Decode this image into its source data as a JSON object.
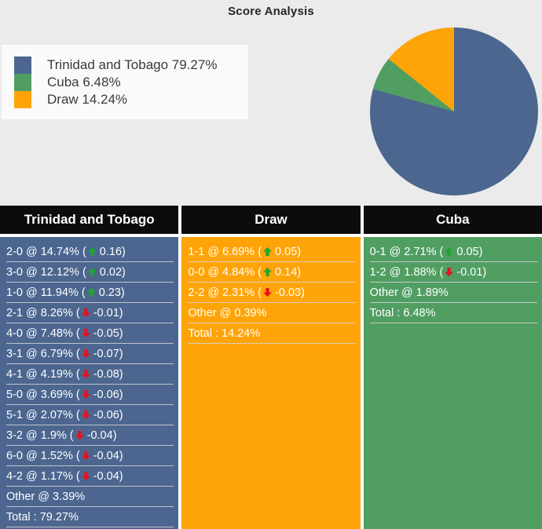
{
  "title": "Score Analysis",
  "colors": {
    "home": "#4c668f",
    "away": "#519e63",
    "draw": "#ffa408",
    "up_arrow": "#1ea62e",
    "down_arrow": "#e8101f",
    "background": "#ebebeb",
    "legend_background": "#fafafa",
    "header_background": "#0c0c0c",
    "row_text": "#ffffff"
  },
  "legend": {
    "items": [
      {
        "label": "Trinidad and Tobago 79.27%",
        "color": "#4c668f"
      },
      {
        "label": "Cuba 6.48%",
        "color": "#519e63"
      },
      {
        "label": "Draw 14.24%",
        "color": "#ffa408"
      }
    ]
  },
  "chart_data": {
    "type": "pie",
    "title": "Score Analysis",
    "labels": [
      "Trinidad and Tobago",
      "Cuba",
      "Draw"
    ],
    "values": [
      79.27,
      6.48,
      14.24
    ],
    "colors": [
      "#4c668f",
      "#519e63",
      "#ffa408"
    ],
    "start_angle": "12 o'clock",
    "direction": "clockwise",
    "legend_position": "upper left"
  },
  "columns": [
    {
      "header": "Trinidad and Tobago",
      "bg": "#4c668f",
      "rows": [
        {
          "score": "2-0",
          "pct": "14.74%",
          "trend": "up",
          "delta": "0.16"
        },
        {
          "score": "3-0",
          "pct": "12.12%",
          "trend": "up",
          "delta": "0.02"
        },
        {
          "score": "1-0",
          "pct": "11.94%",
          "trend": "up",
          "delta": "0.23"
        },
        {
          "score": "2-1",
          "pct": "8.26%",
          "trend": "down",
          "delta": "-0.01"
        },
        {
          "score": "4-0",
          "pct": "7.48%",
          "trend": "down",
          "delta": "-0.05"
        },
        {
          "score": "3-1",
          "pct": "6.79%",
          "trend": "down",
          "delta": "-0.07"
        },
        {
          "score": "4-1",
          "pct": "4.19%",
          "trend": "down",
          "delta": "-0.08"
        },
        {
          "score": "5-0",
          "pct": "3.69%",
          "trend": "down",
          "delta": "-0.06"
        },
        {
          "score": "5-1",
          "pct": "2.07%",
          "trend": "down",
          "delta": "-0.06"
        },
        {
          "score": "3-2",
          "pct": "1.9%",
          "trend": "down",
          "delta": "-0.04"
        },
        {
          "score": "6-0",
          "pct": "1.52%",
          "trend": "down",
          "delta": "-0.04"
        },
        {
          "score": "4-2",
          "pct": "1.17%",
          "trend": "down",
          "delta": "-0.04"
        },
        {
          "score": "Other",
          "pct": "3.39%"
        },
        {
          "total_label": "Total",
          "total_value": "79.27%"
        }
      ]
    },
    {
      "header": "Draw",
      "bg": "#ffa408",
      "rows": [
        {
          "score": "1-1",
          "pct": "6.69%",
          "trend": "up",
          "delta": "0.05"
        },
        {
          "score": "0-0",
          "pct": "4.84%",
          "trend": "up",
          "delta": "0.14"
        },
        {
          "score": "2-2",
          "pct": "2.31%",
          "trend": "down",
          "delta": "-0.03"
        },
        {
          "score": "Other",
          "pct": "0.39%"
        },
        {
          "total_label": "Total",
          "total_value": "14.24%"
        }
      ]
    },
    {
      "header": "Cuba",
      "bg": "#519e63",
      "rows": [
        {
          "score": "0-1",
          "pct": "2.71%",
          "trend": "up",
          "delta": "0.05"
        },
        {
          "score": "1-2",
          "pct": "1.88%",
          "trend": "down",
          "delta": "-0.01"
        },
        {
          "score": "Other",
          "pct": "1.89%"
        },
        {
          "total_label": "Total",
          "total_value": "6.48%"
        }
      ]
    }
  ]
}
